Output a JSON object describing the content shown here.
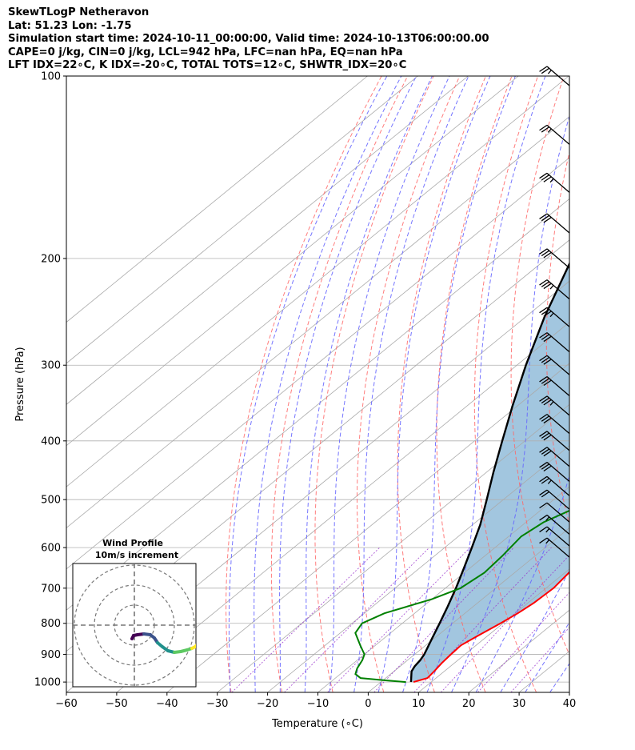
{
  "header": {
    "title": "SkewTLogP Netheravon",
    "location": "Lat: 51.23   Lon: -1.75",
    "times": "Simulation start time: 2024-10-11_00:00:00, Valid time: 2024-10-13T06:00:00.00",
    "indices1": "CAPE=0 j/kg, CIN=0 j/kg, LCL=942 hPa, LFC=nan hPa, EQ=nan hPa",
    "indices2": "LFT IDX=22∘C, K IDX=-20∘C, TOTAL TOTS=12∘C, SHWTR_IDX=20∘C"
  },
  "chart_data": {
    "type": "line",
    "subtype": "skew-t log-p",
    "xlabel": "Temperature (∘C)",
    "ylabel": "Pressure (hPa)",
    "xlim": [
      -60,
      40
    ],
    "ylim": [
      1040,
      100
    ],
    "yscale": "log",
    "grid": true,
    "x_ticks": [
      -60,
      -50,
      -40,
      -30,
      -20,
      -10,
      0,
      10,
      20,
      30,
      40
    ],
    "y_ticks": [
      100,
      200,
      300,
      400,
      500,
      600,
      700,
      800,
      900,
      1000
    ],
    "colors": {
      "temperature": "#ff0000",
      "dewpoint": "#008000",
      "parcel": "#000000",
      "shading": "#a2c6df",
      "dry_adiabats": "#ff6666",
      "moist_adiabats": "#6666ff",
      "mixing_ratio": "#9933cc",
      "isotherms": "#aaaaaa"
    },
    "series": [
      {
        "role": "temperature",
        "points": [
          [
            1000,
            6.5
          ],
          [
            985,
            8.3
          ],
          [
            960,
            8.0
          ],
          [
            930,
            7.5
          ],
          [
            900,
            7.2
          ],
          [
            870,
            7.0
          ],
          [
            840,
            8.0
          ],
          [
            800,
            9.5
          ],
          [
            770,
            10.5
          ],
          [
            740,
            11.2
          ],
          [
            700,
            11.5
          ],
          [
            660,
            10.8
          ],
          [
            620,
            9.5
          ],
          [
            570,
            8.0
          ],
          [
            530,
            6.8
          ],
          [
            490,
            6.0
          ],
          [
            450,
            6.5
          ],
          [
            420,
            7.5
          ],
          [
            390,
            8.5
          ],
          [
            375,
            8.4
          ],
          [
            350,
            7.0
          ],
          [
            320,
            4.8
          ],
          [
            290,
            2.0
          ],
          [
            260,
            -2.0
          ],
          [
            230,
            -6.5
          ],
          [
            200,
            -11.0
          ],
          [
            185,
            -12.8
          ],
          [
            172,
            -13.5
          ],
          [
            162,
            -9.2
          ],
          [
            150,
            -7.0
          ],
          [
            135,
            -5.0
          ],
          [
            120,
            -3.6
          ],
          [
            110,
            -3.0
          ],
          [
            100,
            -2.0
          ]
        ]
      },
      {
        "role": "dewpoint",
        "points": [
          [
            1000,
            5.0
          ],
          [
            993,
            0.0
          ],
          [
            985,
            -5.0
          ],
          [
            970,
            -7.0
          ],
          [
            950,
            -8.0
          ],
          [
            920,
            -9.0
          ],
          [
            900,
            -10.0
          ],
          [
            870,
            -13.0
          ],
          [
            830,
            -17.0
          ],
          [
            800,
            -18.0
          ],
          [
            770,
            -16.0
          ],
          [
            730,
            -10.0
          ],
          [
            700,
            -7.0
          ],
          [
            660,
            -6.0
          ],
          [
            620,
            -6.5
          ],
          [
            575,
            -7.5
          ],
          [
            545,
            -6.5
          ],
          [
            510,
            -3.0
          ],
          [
            470,
            -2.5
          ],
          [
            430,
            -2.5
          ],
          [
            400,
            -3.5
          ],
          [
            370,
            -4.5
          ],
          [
            340,
            -4.5
          ],
          [
            310,
            -6.5
          ],
          [
            285,
            -11.5
          ],
          [
            265,
            -13.5
          ],
          [
            250,
            -13.0
          ],
          [
            225,
            -15.5
          ],
          [
            200,
            -18.0
          ],
          [
            175,
            -21.0
          ],
          [
            163,
            -22.0
          ],
          [
            155,
            -21.0
          ],
          [
            140,
            -20.0
          ],
          [
            128,
            -21.5
          ],
          [
            120,
            -19.5
          ],
          [
            105,
            -17.0
          ],
          [
            100,
            -16.0
          ]
        ]
      },
      {
        "role": "parcel",
        "points": [
          [
            1000,
            6.0
          ],
          [
            960,
            3.5
          ],
          [
            942,
            2.9
          ],
          [
            920,
            2.5
          ],
          [
            900,
            1.9
          ],
          [
            850,
            -0.3
          ],
          [
            800,
            -2.6
          ],
          [
            750,
            -5.1
          ],
          [
            700,
            -7.9
          ],
          [
            650,
            -11.1
          ],
          [
            600,
            -14.6
          ],
          [
            550,
            -18.5
          ],
          [
            500,
            -23.3
          ],
          [
            450,
            -28.7
          ],
          [
            400,
            -34.5
          ],
          [
            350,
            -41.0
          ],
          [
            300,
            -48.2
          ],
          [
            250,
            -56.2
          ],
          [
            200,
            -65.0
          ],
          [
            150,
            -75.8
          ],
          [
            100,
            -90.0
          ]
        ]
      }
    ],
    "wind_barbs": [
      {
        "pressure": 100,
        "speed_kt": 25
      },
      {
        "pressure": 125,
        "speed_kt": 25
      },
      {
        "pressure": 150,
        "speed_kt": 35
      },
      {
        "pressure": 175,
        "speed_kt": 30
      },
      {
        "pressure": 200,
        "speed_kt": 30
      },
      {
        "pressure": 225,
        "speed_kt": 35
      },
      {
        "pressure": 250,
        "speed_kt": 35
      },
      {
        "pressure": 275,
        "speed_kt": 30
      },
      {
        "pressure": 300,
        "speed_kt": 30
      },
      {
        "pressure": 325,
        "speed_kt": 30
      },
      {
        "pressure": 350,
        "speed_kt": 35
      },
      {
        "pressure": 375,
        "speed_kt": 30
      },
      {
        "pressure": 400,
        "speed_kt": 30
      },
      {
        "pressure": 425,
        "speed_kt": 30
      },
      {
        "pressure": 450,
        "speed_kt": 30
      },
      {
        "pressure": 475,
        "speed_kt": 25
      },
      {
        "pressure": 500,
        "speed_kt": 20
      },
      {
        "pressure": 525,
        "speed_kt": 10
      },
      {
        "pressure": 550,
        "speed_kt": 15
      },
      {
        "pressure": 575,
        "speed_kt": 15
      },
      {
        "pressure": 600,
        "speed_kt": 15
      }
    ],
    "inset": {
      "title": "Wind Profile",
      "subtitle": "10m/s increment",
      "type": "hodograph",
      "rings_ms": [
        10,
        20,
        30
      ],
      "colormap": [
        "#440154",
        "#3b528b",
        "#21918c",
        "#5ec962",
        "#fde725"
      ]
    }
  }
}
